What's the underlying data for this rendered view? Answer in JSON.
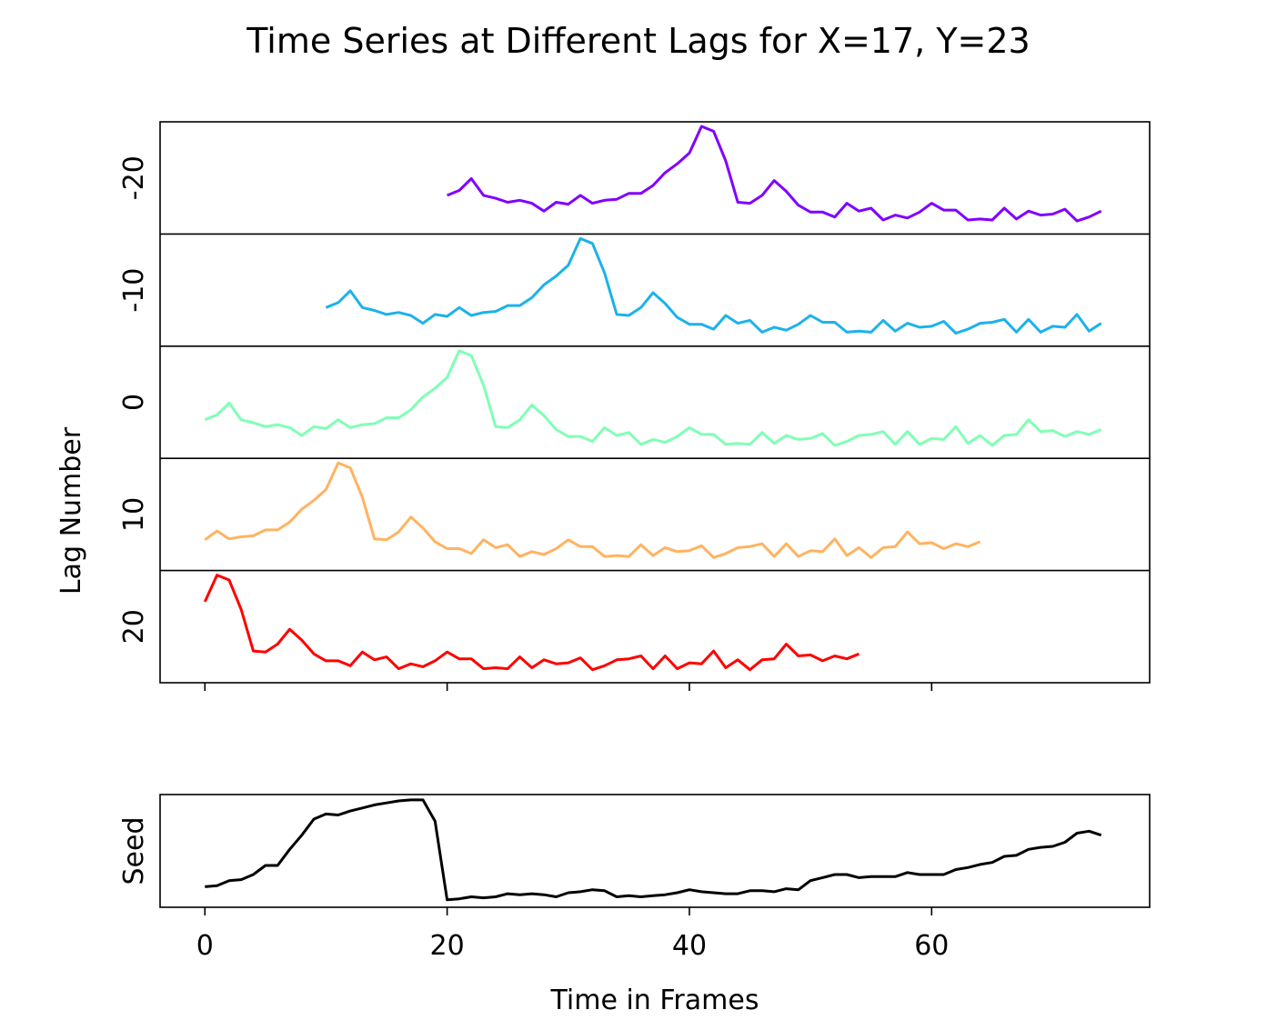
{
  "chart_data": {
    "type": "line",
    "title": "Time Series at Different Lags for X=17, Y=23",
    "xlabel": "Time in Frames",
    "ylabel": "Lag Number",
    "xlim": [
      -3.7,
      78
    ],
    "x_ticks": [
      0,
      20,
      40,
      60
    ],
    "grid": false,
    "lag_panels": {
      "y_ticks": [
        -20,
        -10,
        0,
        10,
        20
      ],
      "series": [
        {
          "lag": -20,
          "color": "#8000ff",
          "x_start": 20,
          "values": [
            0.3,
            0.35,
            0.47,
            0.3,
            0.27,
            0.23,
            0.25,
            0.22,
            0.14,
            0.23,
            0.21,
            0.3,
            0.22,
            0.25,
            0.26,
            0.32,
            0.32,
            0.4,
            0.53,
            0.62,
            0.73,
            1.0,
            0.95,
            0.65,
            0.23,
            0.22,
            0.3,
            0.45,
            0.34,
            0.2,
            0.13,
            0.13,
            0.08,
            0.22,
            0.14,
            0.17,
            0.05,
            0.1,
            0.07,
            0.13,
            0.22,
            0.15,
            0.15,
            0.05,
            0.06,
            0.05,
            0.17,
            0.06,
            0.14,
            0.1,
            0.11,
            0.16,
            0.04,
            0.08,
            0.14
          ]
        },
        {
          "lag": -10,
          "color": "#1cb2eb",
          "x_start": 10,
          "values": [
            0.3,
            0.35,
            0.47,
            0.3,
            0.27,
            0.23,
            0.25,
            0.22,
            0.14,
            0.23,
            0.21,
            0.3,
            0.22,
            0.25,
            0.26,
            0.32,
            0.32,
            0.4,
            0.53,
            0.62,
            0.73,
            1.0,
            0.95,
            0.65,
            0.23,
            0.22,
            0.3,
            0.45,
            0.34,
            0.2,
            0.13,
            0.13,
            0.08,
            0.22,
            0.14,
            0.17,
            0.05,
            0.1,
            0.07,
            0.13,
            0.22,
            0.15,
            0.15,
            0.05,
            0.06,
            0.05,
            0.17,
            0.06,
            0.14,
            0.1,
            0.11,
            0.16,
            0.04,
            0.08,
            0.14,
            0.15,
            0.18,
            0.05,
            0.18,
            0.05,
            0.11,
            0.1,
            0.23,
            0.06,
            0.14
          ]
        },
        {
          "lag": 0,
          "color": "#80ffb4",
          "x_start": 0,
          "values": [
            0.3,
            0.35,
            0.47,
            0.3,
            0.27,
            0.23,
            0.25,
            0.22,
            0.14,
            0.23,
            0.21,
            0.3,
            0.22,
            0.25,
            0.26,
            0.32,
            0.32,
            0.4,
            0.53,
            0.62,
            0.73,
            1.0,
            0.95,
            0.65,
            0.23,
            0.22,
            0.3,
            0.45,
            0.34,
            0.2,
            0.13,
            0.13,
            0.08,
            0.22,
            0.14,
            0.17,
            0.05,
            0.1,
            0.07,
            0.13,
            0.22,
            0.15,
            0.15,
            0.05,
            0.06,
            0.05,
            0.17,
            0.06,
            0.14,
            0.1,
            0.11,
            0.16,
            0.04,
            0.08,
            0.14,
            0.15,
            0.18,
            0.05,
            0.18,
            0.05,
            0.11,
            0.1,
            0.23,
            0.06,
            0.14,
            0.04,
            0.14,
            0.15,
            0.3,
            0.18,
            0.19,
            0.13,
            0.18,
            0.15,
            0.2
          ]
        },
        {
          "lag": 10,
          "color": "#ffb360",
          "x_start": 0,
          "values": [
            0.22,
            0.31,
            0.23,
            0.25,
            0.26,
            0.32,
            0.32,
            0.4,
            0.53,
            0.62,
            0.73,
            1.0,
            0.95,
            0.65,
            0.23,
            0.22,
            0.3,
            0.45,
            0.34,
            0.2,
            0.13,
            0.13,
            0.08,
            0.22,
            0.14,
            0.17,
            0.05,
            0.1,
            0.07,
            0.13,
            0.22,
            0.15,
            0.15,
            0.05,
            0.06,
            0.05,
            0.17,
            0.06,
            0.14,
            0.1,
            0.11,
            0.16,
            0.04,
            0.08,
            0.14,
            0.15,
            0.18,
            0.05,
            0.18,
            0.05,
            0.11,
            0.1,
            0.23,
            0.06,
            0.14,
            0.04,
            0.14,
            0.15,
            0.3,
            0.18,
            0.19,
            0.13,
            0.18,
            0.15,
            0.2
          ]
        },
        {
          "lag": 20,
          "color": "#ff0000",
          "x_start": 0,
          "values": [
            0.73,
            1.0,
            0.95,
            0.65,
            0.23,
            0.22,
            0.3,
            0.45,
            0.34,
            0.2,
            0.13,
            0.13,
            0.08,
            0.22,
            0.14,
            0.17,
            0.05,
            0.1,
            0.07,
            0.13,
            0.22,
            0.15,
            0.15,
            0.05,
            0.06,
            0.05,
            0.17,
            0.06,
            0.14,
            0.1,
            0.11,
            0.16,
            0.04,
            0.08,
            0.14,
            0.15,
            0.18,
            0.05,
            0.18,
            0.05,
            0.11,
            0.1,
            0.23,
            0.06,
            0.14,
            0.04,
            0.14,
            0.15,
            0.3,
            0.18,
            0.19,
            0.13,
            0.18,
            0.15,
            0.2
          ]
        }
      ]
    },
    "seed_panel": {
      "ylabel": "Seed",
      "color": "#000000",
      "x_start": 0,
      "values": [
        0.15,
        0.16,
        0.21,
        0.22,
        0.27,
        0.36,
        0.36,
        0.52,
        0.66,
        0.82,
        0.87,
        0.86,
        0.9,
        0.93,
        0.96,
        0.98,
        1.0,
        1.01,
        1.01,
        0.8,
        0.02,
        0.03,
        0.05,
        0.04,
        0.05,
        0.08,
        0.07,
        0.08,
        0.07,
        0.05,
        0.09,
        0.1,
        0.12,
        0.11,
        0.05,
        0.06,
        0.05,
        0.06,
        0.07,
        0.09,
        0.12,
        0.1,
        0.09,
        0.08,
        0.08,
        0.11,
        0.11,
        0.1,
        0.13,
        0.12,
        0.21,
        0.24,
        0.27,
        0.27,
        0.24,
        0.25,
        0.25,
        0.25,
        0.29,
        0.27,
        0.27,
        0.27,
        0.32,
        0.34,
        0.37,
        0.39,
        0.45,
        0.46,
        0.52,
        0.54,
        0.55,
        0.59,
        0.68,
        0.7,
        0.66
      ]
    }
  }
}
